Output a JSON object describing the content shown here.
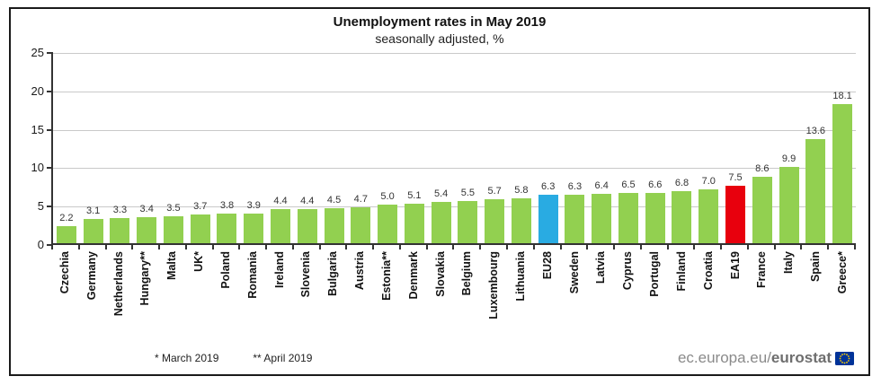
{
  "chart": {
    "title": "Unemployment rates in May 2019",
    "subtitle": "seasonally adjusted, %",
    "footnotes": {
      "march": "*  March 2019",
      "april": "** April 2019"
    },
    "footer": {
      "url_prefix": "ec.europa.eu/",
      "url_bold": "eurostat"
    },
    "colors": {
      "member": "#92d050",
      "eu28": "#29abe2",
      "ea19": "#e8000d",
      "gridline": "#c9c9c9",
      "axis": "#333333"
    }
  },
  "chart_data": {
    "type": "bar",
    "title": "Unemployment rates in May 2019",
    "subtitle": "seasonally adjusted, %",
    "xlabel": "",
    "ylabel": "",
    "ylim": [
      0,
      25
    ],
    "yticks": [
      0,
      5,
      10,
      15,
      20,
      25
    ],
    "grid": true,
    "legend_position": "none",
    "categories": [
      "Czechia",
      "Germany",
      "Netherlands",
      "Hungary**",
      "Malta",
      "UK*",
      "Poland",
      "Romania",
      "Ireland",
      "Slovenia",
      "Bulgaria",
      "Austria",
      "Estonia**",
      "Denmark",
      "Slovakia",
      "Belgium",
      "Luxembourg",
      "Lithuania",
      "EU28",
      "Sweden",
      "Latvia",
      "Cyprus",
      "Portugal",
      "Finland",
      "Croatia",
      "EA19",
      "France",
      "Italy",
      "Spain",
      "Greece*"
    ],
    "values": [
      2.2,
      3.1,
      3.3,
      3.4,
      3.5,
      3.7,
      3.8,
      3.9,
      4.4,
      4.4,
      4.5,
      4.7,
      5.0,
      5.1,
      5.4,
      5.5,
      5.7,
      5.8,
      6.3,
      6.3,
      6.4,
      6.5,
      6.6,
      6.8,
      7.0,
      7.5,
      8.6,
      9.9,
      13.6,
      18.1
    ],
    "bar_groups": [
      "member",
      "member",
      "member",
      "member",
      "member",
      "member",
      "member",
      "member",
      "member",
      "member",
      "member",
      "member",
      "member",
      "member",
      "member",
      "member",
      "member",
      "member",
      "eu28",
      "member",
      "member",
      "member",
      "member",
      "member",
      "member",
      "ea19",
      "member",
      "member",
      "member",
      "member"
    ],
    "annotations": [
      "*  March 2019",
      "** April 2019"
    ],
    "source": "ec.europa.eu/eurostat"
  }
}
